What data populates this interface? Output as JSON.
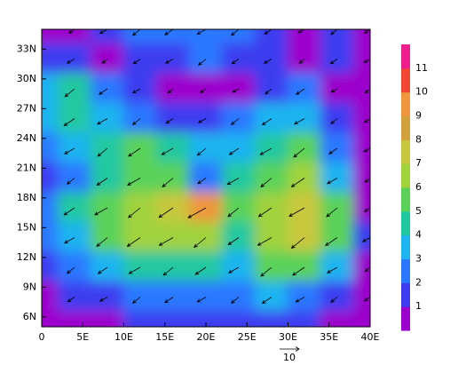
{
  "chart_data": {
    "type": "contour-map",
    "xlim": [
      0,
      40
    ],
    "ylim": [
      5,
      35
    ],
    "xticks": [
      {
        "value": 0,
        "label": "0"
      },
      {
        "value": 5,
        "label": "5E"
      },
      {
        "value": 10,
        "label": "10E"
      },
      {
        "value": 15,
        "label": "15E"
      },
      {
        "value": 20,
        "label": "20E"
      },
      {
        "value": 25,
        "label": "25E"
      },
      {
        "value": 30,
        "label": "30E"
      },
      {
        "value": 35,
        "label": "35E"
      },
      {
        "value": 40,
        "label": "40E"
      }
    ],
    "yticks": [
      {
        "value": 6,
        "label": "6N"
      },
      {
        "value": 9,
        "label": "9N"
      },
      {
        "value": 12,
        "label": "12N"
      },
      {
        "value": 15,
        "label": "15N"
      },
      {
        "value": 18,
        "label": "18N"
      },
      {
        "value": 21,
        "label": "21N"
      },
      {
        "value": 24,
        "label": "24N"
      },
      {
        "value": 27,
        "label": "27N"
      },
      {
        "value": 30,
        "label": "30N"
      },
      {
        "value": 33,
        "label": "33N"
      }
    ],
    "levels": [
      1,
      2,
      3,
      4,
      5,
      6,
      7,
      8,
      9,
      10,
      11
    ],
    "colors": [
      "#9c00cc",
      "#3c3cf0",
      "#2a78ff",
      "#1eb4f0",
      "#20c8a0",
      "#5ad25a",
      "#a0d23c",
      "#c8c83c",
      "#d2a03c",
      "#f0963c",
      "#f04632",
      "#f01e8c"
    ],
    "reference_vector": 10,
    "field": {
      "lon": [
        0,
        4,
        8,
        12,
        16,
        20,
        24,
        28,
        32,
        36,
        40
      ],
      "lat": [
        35,
        32,
        29,
        26,
        23,
        20,
        17,
        14,
        11,
        8,
        5
      ],
      "values": [
        [
          1,
          1,
          2,
          3,
          3,
          3,
          3,
          2,
          1,
          2,
          1
        ],
        [
          2,
          2,
          1,
          2,
          2,
          3,
          2,
          2,
          1,
          2,
          1
        ],
        [
          4,
          5,
          3,
          2,
          1,
          1,
          1,
          2,
          3,
          1,
          1
        ],
        [
          4,
          5,
          4,
          3,
          2,
          2,
          3,
          4,
          4,
          2,
          1
        ],
        [
          3,
          4,
          5,
          6,
          5,
          4,
          4,
          5,
          6,
          3,
          1
        ],
        [
          2,
          3,
          5,
          6,
          6,
          3,
          5,
          6,
          7,
          4,
          1
        ],
        [
          3,
          5,
          6,
          7,
          8,
          10,
          6,
          7,
          8,
          6,
          1
        ],
        [
          3,
          4,
          6,
          7,
          7,
          7,
          5,
          7,
          8,
          6,
          2
        ],
        [
          2,
          3,
          4,
          5,
          5,
          5,
          4,
          6,
          6,
          4,
          1
        ],
        [
          1,
          2,
          2,
          3,
          3,
          3,
          3,
          4,
          3,
          2,
          1
        ],
        [
          1,
          1,
          1,
          2,
          2,
          2,
          2,
          2,
          2,
          1,
          1
        ]
      ]
    }
  }
}
